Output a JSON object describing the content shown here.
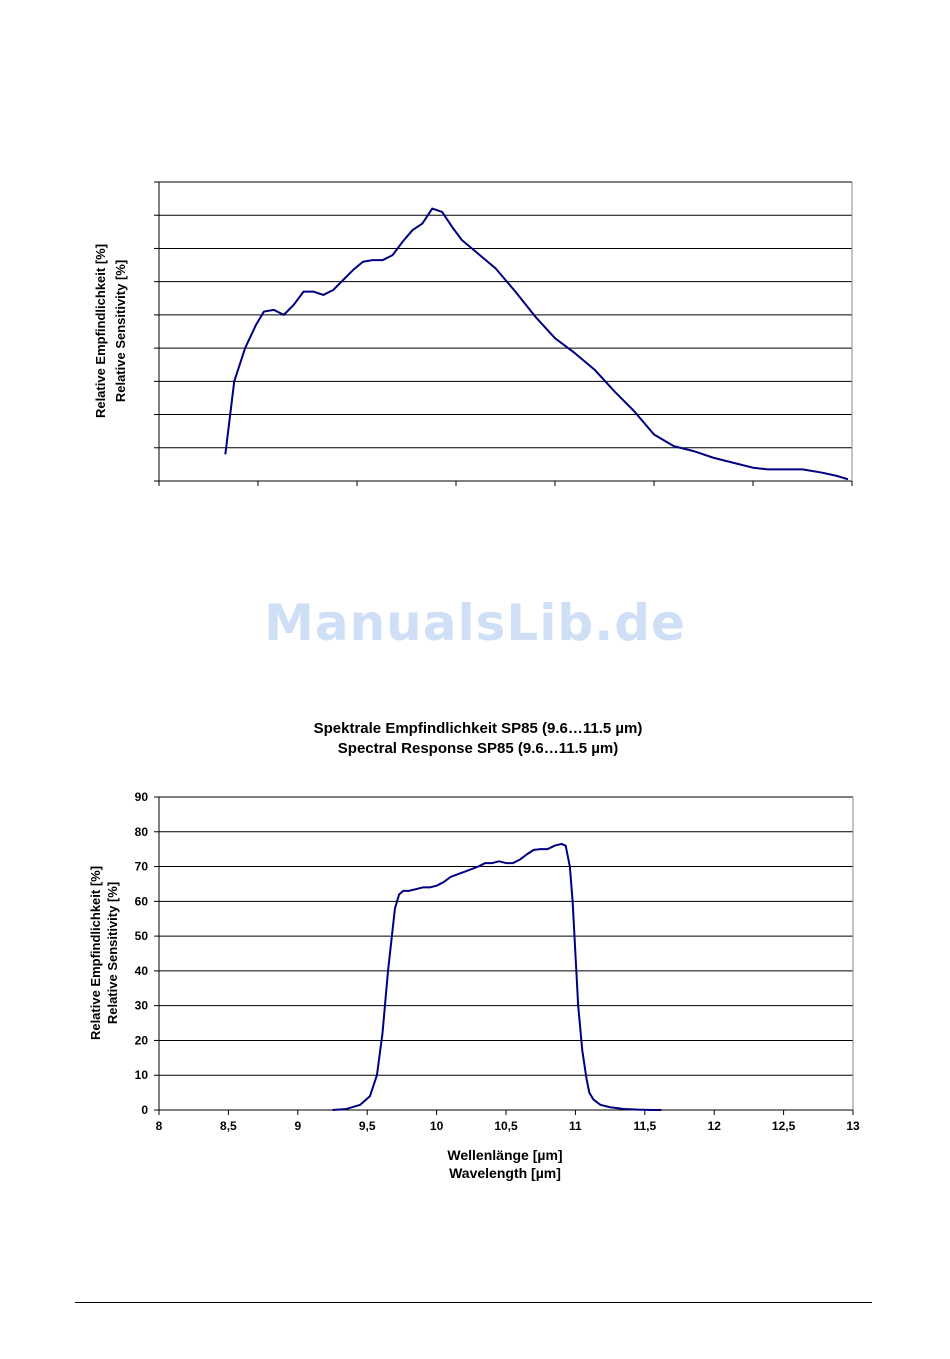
{
  "watermark": "ManualsLib.de",
  "chart_data": [
    {
      "type": "line",
      "title": "",
      "subtitle": "",
      "xlabel": "",
      "xlabel2": "",
      "ylabel": "Relative Empfindlichkeit [%]",
      "ylabel2": "Relative Sensitivity [%]",
      "grid": true,
      "ylim": [
        0,
        9
      ],
      "xlim": [
        0,
        7
      ],
      "y_gridlines": 9,
      "x_ticks": 7,
      "line_color": "#000080",
      "series": [
        {
          "x": [
            0.67,
            0.76,
            0.87,
            0.98,
            1.06,
            1.16,
            1.26,
            1.36,
            1.46,
            1.56,
            1.66,
            1.76,
            1.86,
            1.96,
            2.06,
            2.16,
            2.26,
            2.36,
            2.46,
            2.56,
            2.66,
            2.76,
            2.86,
            2.96,
            3.06,
            3.2,
            3.4,
            3.6,
            3.8,
            4.0,
            4.2,
            4.4,
            4.6,
            4.8,
            5.0,
            5.2,
            5.4,
            5.6,
            5.8,
            6.0,
            6.15,
            6.3,
            6.5,
            6.7,
            6.85,
            6.96
          ],
          "y": [
            0.8,
            3.0,
            4.0,
            4.7,
            5.1,
            5.15,
            5.0,
            5.3,
            5.7,
            5.7,
            5.6,
            5.75,
            6.05,
            6.35,
            6.6,
            6.65,
            6.65,
            6.8,
            7.2,
            7.55,
            7.75,
            8.2,
            8.1,
            7.65,
            7.25,
            6.9,
            6.4,
            5.7,
            4.95,
            4.3,
            3.85,
            3.35,
            2.7,
            2.1,
            1.4,
            1.05,
            0.9,
            0.7,
            0.55,
            0.4,
            0.35,
            0.35,
            0.35,
            0.25,
            0.15,
            0.05
          ]
        }
      ]
    },
    {
      "type": "line",
      "title": "Spektrale Empfindlichkeit  SP85 (9.6…11.5 µm)",
      "subtitle": "Spectral Response SP85 (9.6…11.5 µm)",
      "xlabel": "Wellenlänge [µm]",
      "xlabel2": "Wavelength [µm]",
      "ylabel": "Relative Empfindlichkeit [%]",
      "ylabel2": "Relative Sensitivity [%]",
      "grid": true,
      "xlim": [
        8,
        13
      ],
      "ylim": [
        0,
        90
      ],
      "x_tick_labels": [
        "8",
        "8,5",
        "9",
        "9,5",
        "10",
        "10,5",
        "11",
        "11,5",
        "12",
        "12,5",
        "13"
      ],
      "y_tick_labels": [
        "0",
        "10",
        "20",
        "30",
        "40",
        "50",
        "60",
        "70",
        "80",
        "90"
      ],
      "line_color": "#000080",
      "series": [
        {
          "x": [
            9.25,
            9.35,
            9.45,
            9.52,
            9.57,
            9.61,
            9.65,
            9.7,
            9.73,
            9.76,
            9.8,
            9.85,
            9.9,
            9.95,
            10.0,
            10.05,
            10.1,
            10.2,
            10.3,
            10.35,
            10.4,
            10.45,
            10.5,
            10.55,
            10.6,
            10.65,
            10.7,
            10.75,
            10.8,
            10.85,
            10.9,
            10.93,
            10.96,
            10.98,
            11.0,
            11.02,
            11.05,
            11.08,
            11.1,
            11.13,
            11.18,
            11.25,
            11.35,
            11.45,
            11.55,
            11.62
          ],
          "y": [
            0,
            0.3,
            1.5,
            4,
            10,
            22,
            40,
            58,
            62,
            63,
            63,
            63.5,
            64,
            64,
            64.5,
            65.5,
            67,
            68.5,
            70,
            71,
            71,
            71.5,
            71,
            71,
            72,
            73.5,
            74.8,
            75,
            75,
            76,
            76.5,
            76,
            70,
            60,
            45,
            30,
            17,
            9,
            5,
            3,
            1.5,
            0.8,
            0.3,
            0.1,
            0,
            0
          ]
        }
      ]
    }
  ]
}
